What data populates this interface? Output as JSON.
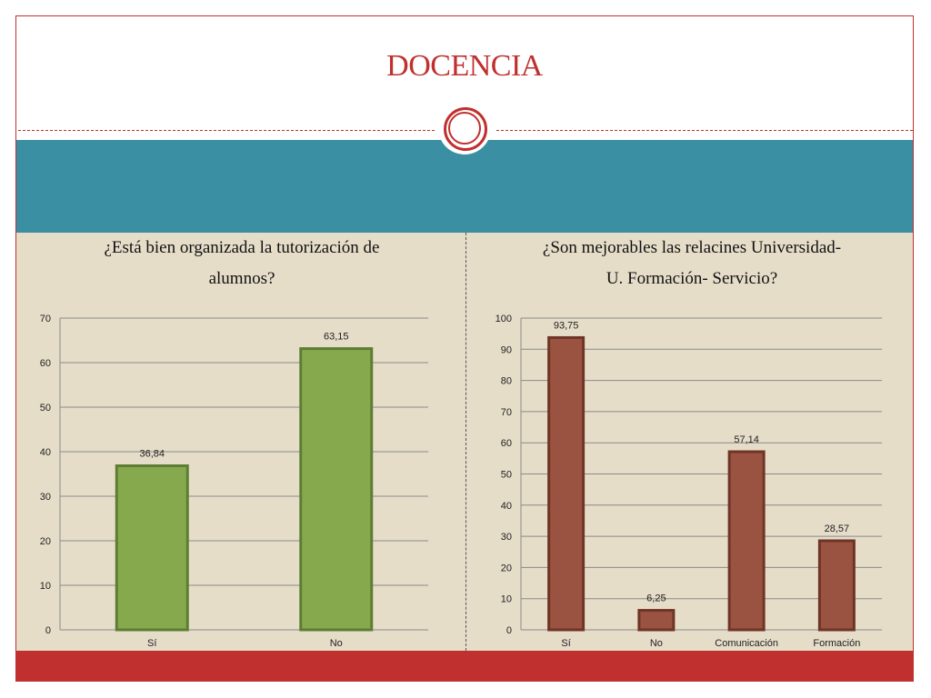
{
  "slide": {
    "title": "DOCENCIA",
    "colors": {
      "accent": "#c0302f",
      "band": "#3a8fa3",
      "content_bg": "#e6ddc9"
    }
  },
  "chart_data": [
    {
      "type": "bar",
      "title": "¿Está bien organizada la tutorización de alumnos?",
      "title_lines": [
        "¿Está bien organizada la tutorización de",
        "alumnos?"
      ],
      "categories": [
        "Sí",
        "No"
      ],
      "values": [
        36.84,
        63.15
      ],
      "value_labels": [
        "36,84",
        "63,15"
      ],
      "ylim": [
        0,
        70
      ],
      "yticks": [
        0,
        10,
        20,
        30,
        40,
        50,
        60,
        70
      ],
      "grid": true,
      "bar_color": "#86a94e",
      "bar_edge": "#5d7d33"
    },
    {
      "type": "bar",
      "title": "¿Son mejorables las relacines Universidad-U. Formación- Servicio?",
      "title_lines": [
        "¿Son mejorables las relacines Universidad-",
        "U. Formación- Servicio?"
      ],
      "categories": [
        "Sí",
        "No",
        "Comunicación",
        "Formación"
      ],
      "values": [
        93.75,
        6.25,
        57.14,
        28.57
      ],
      "value_labels": [
        "93,75",
        "6,25",
        "57,14",
        "28,57"
      ],
      "ylim": [
        0,
        100
      ],
      "yticks": [
        0,
        10,
        20,
        30,
        40,
        50,
        60,
        70,
        80,
        90,
        100
      ],
      "grid": true,
      "bar_color": "#9a5340",
      "bar_edge": "#6e3526"
    }
  ]
}
